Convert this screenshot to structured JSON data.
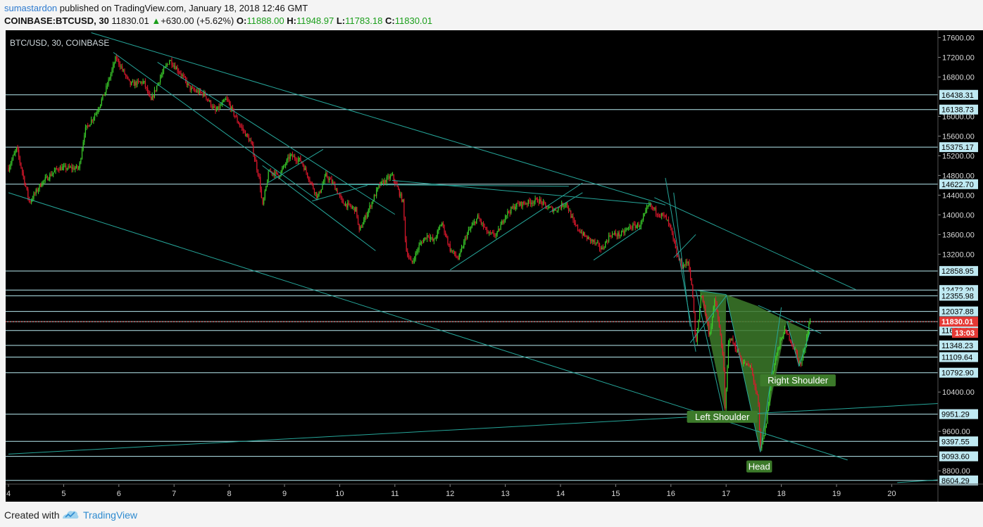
{
  "header": {
    "author": "sumastardon",
    "published_text": "published on TradingView.com, January 18, 2018 12:46 GMT",
    "symbol": "COINBASE:BTCUSD, 30",
    "last": "11830.01",
    "change": "+630.00 (+5.62%)",
    "o_label": "O:",
    "o_value": "11888.00",
    "h_label": "H:",
    "h_value": "11948.97",
    "l_label": "L:",
    "l_value": "11783.18",
    "c_label": "C:",
    "c_value": "11830.01"
  },
  "footer": {
    "created_with": "Created with",
    "brand": "TradingView"
  },
  "colors": {
    "background": "#000000",
    "grid_line": "#b8eaf0",
    "trend_line": "#26a69a",
    "up_candle": "#3cd12b",
    "down_candle": "#e0182d",
    "pattern_fill": "#3c7a2a",
    "price_tag": "#e53935",
    "level_tag": "#bfe9f2"
  },
  "chart_data": {
    "type": "candlestick",
    "title": "BTC/USD, 30, COINBASE",
    "xlabel": "",
    "ylabel": "",
    "ylim": [
      8530,
      17750
    ],
    "x_ticks": [
      "4",
      "5",
      "6",
      "7",
      "8",
      "9",
      "10",
      "11",
      "12",
      "13",
      "14",
      "15",
      "16",
      "17",
      "18",
      "19",
      "20"
    ],
    "y_ticks": [
      "17600.00",
      "17200.00",
      "16800.00",
      "16000.00",
      "15600.00",
      "15200.00",
      "14800.00",
      "14400.00",
      "14000.00",
      "13600.00",
      "13200.00",
      "10400.00",
      "9600.00",
      "8800.00"
    ],
    "levels": [
      {
        "value": 16438.31,
        "label": "16438.31"
      },
      {
        "value": 16138.73,
        "label": "16138.73"
      },
      {
        "value": 15375.17,
        "label": "15375.17"
      },
      {
        "value": 14622.7,
        "label": "14622.70"
      },
      {
        "value": 12858.95,
        "label": "12858.95"
      },
      {
        "value": 12472.2,
        "label": "12472.20"
      },
      {
        "value": 12355.98,
        "label": "12355.98"
      },
      {
        "value": 12037.88,
        "label": "12037.88"
      },
      {
        "value": 11830.01,
        "label": "11830.01"
      },
      {
        "value": 11650.0,
        "label": "11650.00"
      },
      {
        "value": 11348.23,
        "label": "11348.23"
      },
      {
        "value": 11109.64,
        "label": "11109.64"
      },
      {
        "value": 10792.9,
        "label": "10792.90"
      },
      {
        "value": 9951.29,
        "label": "9951.29"
      },
      {
        "value": 9397.55,
        "label": "9397.55"
      },
      {
        "value": 9093.6,
        "label": "9093.60"
      },
      {
        "value": 8604.29,
        "label": "8604.29"
      }
    ],
    "current_price": {
      "value": 11830.01,
      "label": "11830.01",
      "countdown": "13:03"
    },
    "anchors": [
      [
        4.0,
        14950
      ],
      [
        4.15,
        15350
      ],
      [
        4.38,
        14250
      ],
      [
        4.6,
        14650
      ],
      [
        4.9,
        14950
      ],
      [
        5.28,
        14950
      ],
      [
        5.38,
        15700
      ],
      [
        5.6,
        16100
      ],
      [
        5.75,
        16500
      ],
      [
        5.95,
        17200
      ],
      [
        6.2,
        16650
      ],
      [
        6.45,
        16700
      ],
      [
        6.58,
        16300
      ],
      [
        6.75,
        16800
      ],
      [
        6.92,
        17150
      ],
      [
        7.1,
        16900
      ],
      [
        7.3,
        16550
      ],
      [
        7.55,
        16450
      ],
      [
        7.75,
        16100
      ],
      [
        7.95,
        16350
      ],
      [
        8.15,
        15900
      ],
      [
        8.4,
        15450
      ],
      [
        8.55,
        14700
      ],
      [
        8.6,
        14150
      ],
      [
        8.72,
        14900
      ],
      [
        8.9,
        14800
      ],
      [
        9.1,
        15200
      ],
      [
        9.3,
        15100
      ],
      [
        9.5,
        14600
      ],
      [
        9.6,
        14350
      ],
      [
        9.75,
        14800
      ],
      [
        9.9,
        14600
      ],
      [
        10.05,
        14250
      ],
      [
        10.3,
        14100
      ],
      [
        10.35,
        13650
      ],
      [
        10.5,
        14050
      ],
      [
        10.72,
        14600
      ],
      [
        10.95,
        14800
      ],
      [
        11.15,
        14250
      ],
      [
        11.2,
        13300
      ],
      [
        11.3,
        13000
      ],
      [
        11.45,
        13400
      ],
      [
        11.6,
        13600
      ],
      [
        11.7,
        13450
      ],
      [
        11.85,
        13850
      ],
      [
        12.0,
        13300
      ],
      [
        12.15,
        13100
      ],
      [
        12.3,
        13600
      ],
      [
        12.5,
        13950
      ],
      [
        12.7,
        13600
      ],
      [
        12.85,
        13600
      ],
      [
        13.0,
        14000
      ],
      [
        13.2,
        14200
      ],
      [
        13.4,
        14250
      ],
      [
        13.6,
        14300
      ],
      [
        13.75,
        14150
      ],
      [
        13.9,
        14100
      ],
      [
        14.1,
        14250
      ],
      [
        14.25,
        13800
      ],
      [
        14.45,
        13550
      ],
      [
        14.6,
        13450
      ],
      [
        14.75,
        13300
      ],
      [
        14.9,
        13600
      ],
      [
        15.1,
        13600
      ],
      [
        15.25,
        13750
      ],
      [
        15.45,
        13800
      ],
      [
        15.6,
        14200
      ],
      [
        15.75,
        14050
      ],
      [
        15.9,
        13950
      ],
      [
        16.0,
        13700
      ],
      [
        16.1,
        13200
      ],
      [
        16.2,
        12950
      ],
      [
        16.32,
        13050
      ],
      [
        16.4,
        12300
      ],
      [
        16.45,
        11300
      ],
      [
        16.55,
        12450
      ],
      [
        16.7,
        11550
      ],
      [
        16.8,
        12300
      ],
      [
        16.95,
        11100
      ],
      [
        16.98,
        10000
      ],
      [
        17.05,
        11550
      ],
      [
        17.15,
        11350
      ],
      [
        17.3,
        11000
      ],
      [
        17.45,
        10900
      ],
      [
        17.58,
        10200
      ],
      [
        17.62,
        9200
      ],
      [
        17.72,
        9700
      ],
      [
        17.82,
        10700
      ],
      [
        17.92,
        11200
      ],
      [
        18.05,
        11650
      ],
      [
        18.15,
        11500
      ],
      [
        18.25,
        11250
      ],
      [
        18.3,
        11050
      ],
      [
        18.35,
        10950
      ],
      [
        18.45,
        11450
      ],
      [
        18.52,
        11900
      ],
      [
        18.53,
        11830
      ]
    ],
    "annotations": [
      {
        "text": "Left Shoulder",
        "x": 16.93,
        "y": 9890
      },
      {
        "text": "Head",
        "x": 17.6,
        "y": 8880
      },
      {
        "text": "Right Shoulder",
        "x": 18.3,
        "y": 10630
      }
    ],
    "pattern_polygons": [
      [
        [
          16.52,
          12470
        ],
        [
          16.98,
          9990
        ],
        [
          17.0,
          12380
        ]
      ],
      [
        [
          17.0,
          12380
        ],
        [
          17.62,
          9180
        ],
        [
          18.1,
          11840
        ],
        [
          17.56,
          12150
        ]
      ],
      [
        [
          18.1,
          11840
        ],
        [
          18.32,
          10920
        ],
        [
          18.52,
          11620
        ]
      ]
    ],
    "trend_lines": [
      [
        [
          5.5,
          17700
        ],
        [
          15.9,
          14200
        ]
      ],
      [
        [
          15.7,
          14350
        ],
        [
          19.35,
          12480
        ]
      ],
      [
        [
          4.0,
          14450
        ],
        [
          19.2,
          9020
        ]
      ],
      [
        [
          4.0,
          9140
        ],
        [
          20.9,
          10170
        ]
      ],
      [
        [
          20.1,
          8560
        ],
        [
          20.9,
          8620
        ]
      ],
      [
        [
          5.9,
          17300
        ],
        [
          9.6,
          14300
        ]
      ],
      [
        [
          6.7,
          17100
        ],
        [
          11.0,
          14010
        ]
      ],
      [
        [
          8.6,
          15000
        ],
        [
          10.65,
          13270
        ]
      ],
      [
        [
          9.6,
          14620
        ],
        [
          14.15,
          14580
        ]
      ],
      [
        [
          10.95,
          14700
        ],
        [
          15.65,
          14220
        ]
      ],
      [
        [
          12.0,
          12880
        ],
        [
          14.4,
          14650
        ]
      ],
      [
        [
          13.8,
          14050
        ],
        [
          14.4,
          14450
        ]
      ],
      [
        [
          14.6,
          13080
        ],
        [
          15.45,
          13730
        ]
      ],
      [
        [
          8.7,
          14650
        ],
        [
          9.7,
          15330
        ]
      ],
      [
        [
          9.5,
          14280
        ],
        [
          10.5,
          14600
        ]
      ],
      [
        [
          15.9,
          14750
        ],
        [
          16.45,
          11220
        ]
      ],
      [
        [
          16.05,
          14450
        ],
        [
          16.35,
          11730
        ]
      ],
      [
        [
          16.05,
          13130
        ],
        [
          16.45,
          13600
        ]
      ],
      [
        [
          16.35,
          11400
        ],
        [
          17.0,
          12350
        ]
      ],
      [
        [
          16.45,
          12480
        ],
        [
          16.95,
          9990
        ]
      ],
      [
        [
          17.0,
          12380
        ],
        [
          17.62,
          9180
        ]
      ],
      [
        [
          17.62,
          9180
        ],
        [
          18.0,
          12120
        ]
      ],
      [
        [
          18.1,
          11840
        ],
        [
          18.32,
          10920
        ]
      ],
      [
        [
          18.32,
          10920
        ],
        [
          18.52,
          11620
        ]
      ],
      [
        [
          17.58,
          12160
        ],
        [
          18.72,
          11590
        ]
      ],
      [
        [
          16.45,
          12470
        ],
        [
          17.0,
          12380
        ]
      ]
    ]
  }
}
